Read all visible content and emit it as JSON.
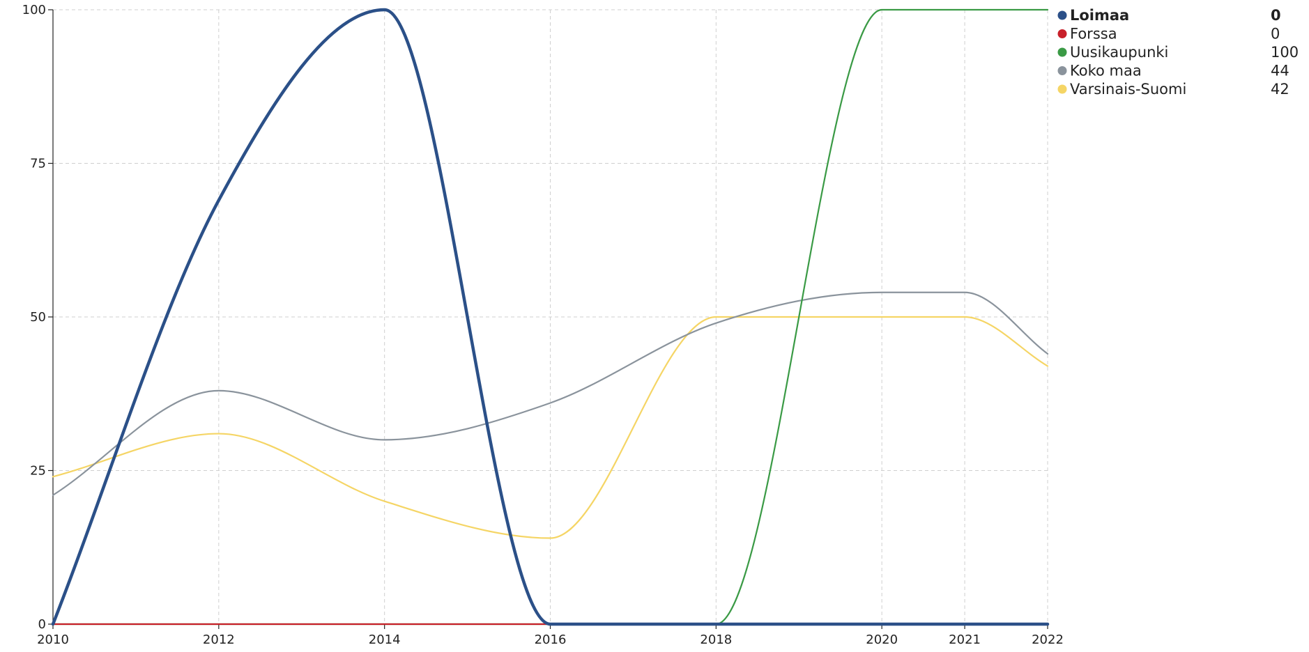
{
  "chart_data": {
    "type": "line",
    "x": [
      2010,
      2012,
      2014,
      2016,
      2018,
      2020,
      2021,
      2022
    ],
    "x_ticks": [
      2010,
      2012,
      2014,
      2016,
      2018,
      2020,
      2021,
      2022
    ],
    "y_ticks": [
      0,
      25,
      50,
      75,
      100
    ],
    "xlim": [
      2010,
      2022
    ],
    "ylim": [
      0,
      100
    ],
    "grid": true,
    "legend_position": "top-right",
    "series": [
      {
        "name": "Loimaa",
        "color": "#2b5088",
        "bold": true,
        "legend_value": "0",
        "values": [
          0,
          69,
          100,
          0,
          0,
          0,
          0,
          0
        ]
      },
      {
        "name": "Forssa",
        "color": "#c8202a",
        "bold": false,
        "legend_value": "0",
        "values": [
          0,
          0,
          0,
          0,
          0,
          0,
          0,
          0
        ]
      },
      {
        "name": "Uusikaupunki",
        "color": "#3a9a45",
        "bold": false,
        "legend_value": "100",
        "values": [
          0,
          0,
          0,
          0,
          0,
          100,
          100,
          100
        ]
      },
      {
        "name": "Koko maa",
        "color": "#8a939c",
        "bold": false,
        "legend_value": "44",
        "values": [
          21,
          38,
          30,
          36,
          49,
          54,
          54,
          44
        ]
      },
      {
        "name": "Varsinais-Suomi",
        "color": "#f5d565",
        "bold": false,
        "legend_value": "42",
        "values": [
          24,
          31,
          20,
          14,
          50,
          50,
          50,
          42
        ]
      }
    ]
  }
}
